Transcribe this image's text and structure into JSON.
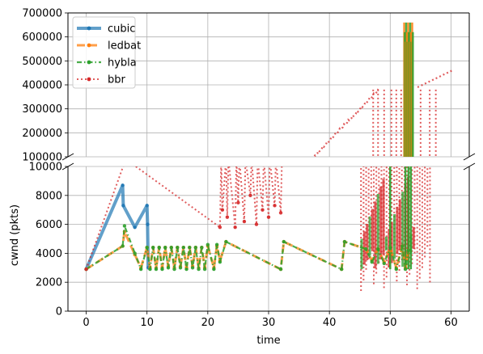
{
  "chart_data": {
    "type": "line",
    "xlabel": "time",
    "ylabel": "cwnd (pkts)",
    "xlim": [
      -3,
      63
    ],
    "x_ticks": [
      "0",
      "10",
      "20",
      "30",
      "40",
      "50",
      "60"
    ],
    "broken_y_axis": true,
    "top_panel": {
      "ylim": [
        100000,
        700000
      ],
      "y_ticks": [
        "100000",
        "200000",
        "300000",
        "400000",
        "500000",
        "600000",
        "700000"
      ]
    },
    "bottom_panel": {
      "ylim": [
        0,
        10000
      ],
      "y_ticks": [
        "0",
        "2000",
        "4000",
        "6000",
        "8000",
        "10000"
      ]
    },
    "grid": true,
    "legend_position": "top-left",
    "series": [
      {
        "name": "cubic",
        "color": "#1f77b4",
        "style": "solid",
        "x": [
          0,
          6,
          6.1,
          8,
          10,
          10.1,
          10.2
        ],
        "y": [
          2900,
          8700,
          7300,
          5800,
          7300,
          6000,
          3000
        ]
      },
      {
        "name": "ledbat",
        "color": "#ff7f0e",
        "style": "dashed",
        "x": [
          0,
          6,
          6.3,
          8,
          9,
          10,
          10.5,
          11,
          11.5,
          12,
          12.5,
          13,
          13.5,
          14,
          14.5,
          15,
          15.5,
          16,
          16.5,
          17,
          17.5,
          18,
          18.5,
          19,
          19.5,
          20,
          21,
          21.5,
          22,
          23,
          32,
          32.5,
          42,
          42.5,
          46,
          47,
          48,
          49,
          50,
          51,
          52,
          52.5,
          53
        ],
        "y": [
          2900,
          4500,
          5500,
          3900,
          3000,
          4400,
          3000,
          4400,
          3000,
          4400,
          3000,
          4400,
          3100,
          4400,
          3000,
          4400,
          3100,
          4400,
          3000,
          4400,
          3100,
          4400,
          3000,
          4400,
          3000,
          4500,
          3000,
          4500,
          3500,
          4800,
          2900,
          4800,
          2900,
          4800,
          4300,
          3500,
          4300,
          3400,
          4400,
          3000,
          4500,
          3000,
          4200
        ]
      },
      {
        "name": "hybla",
        "color": "#2ca02c",
        "style": "dashdot",
        "x": [
          0,
          6,
          6.3,
          8,
          9,
          10,
          10.5,
          11,
          11.5,
          12,
          12.5,
          13,
          13.5,
          14,
          14.5,
          15,
          15.5,
          16,
          16.5,
          17,
          17.5,
          18,
          18.5,
          19,
          19.5,
          20,
          21,
          21.5,
          22,
          23,
          32,
          32.5,
          42,
          42.5,
          46,
          47,
          48,
          49,
          50,
          51,
          52,
          52.5,
          53
        ],
        "y": [
          2900,
          4500,
          5900,
          4000,
          2900,
          4400,
          2900,
          4400,
          2900,
          4400,
          2900,
          4400,
          3000,
          4400,
          2900,
          4400,
          3000,
          4400,
          2900,
          4400,
          3000,
          4400,
          2900,
          4400,
          2900,
          4600,
          2900,
          4600,
          3400,
          4800,
          2900,
          4800,
          2900,
          4800,
          4300,
          3400,
          4300,
          3300,
          4400,
          2900,
          4500,
          2900,
          4200
        ]
      },
      {
        "name": "bbr",
        "color": "#d62728",
        "style": "dotted",
        "x": [
          0,
          6.5,
          22,
          22.2,
          22.4,
          23,
          23.2,
          23.4,
          24.5,
          24.7,
          25,
          25.2,
          26,
          26.2,
          27,
          27.2,
          28,
          28.2,
          29,
          29.2,
          30,
          30.2,
          31,
          31.2,
          32,
          32.2
        ],
        "y": [
          2900,
          10500,
          5800,
          10500,
          7000,
          10500,
          6500,
          10500,
          5800,
          10500,
          7500,
          10500,
          6200,
          10500,
          8000,
          10500,
          6000,
          10500,
          7000,
          10500,
          6500,
          10500,
          7300,
          10500,
          6800,
          10500
        ]
      }
    ]
  }
}
